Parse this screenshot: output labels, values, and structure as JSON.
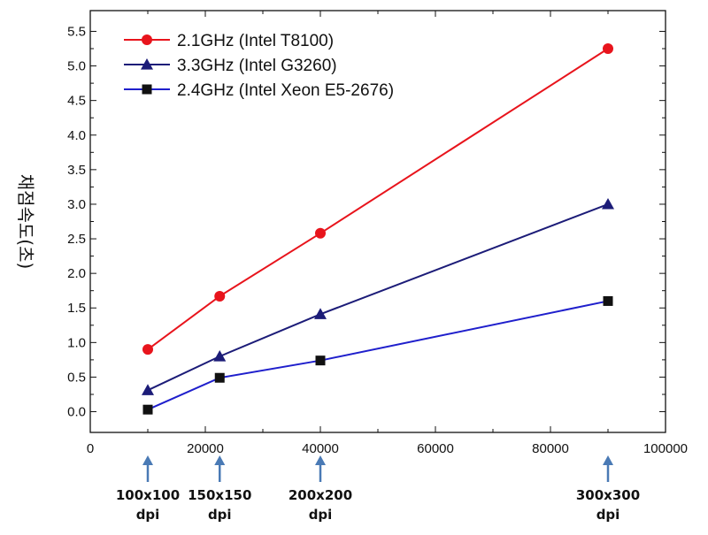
{
  "chart_data": {
    "type": "line",
    "title": "",
    "xlabel": "",
    "ylabel": "채점속도(초)",
    "xlim": [
      0,
      100000
    ],
    "ylim": [
      -0.3,
      5.8
    ],
    "x_ticks": [
      0,
      20000,
      40000,
      60000,
      80000,
      100000
    ],
    "x_tick_labels": [
      "0",
      "20000",
      "40000",
      "60000",
      "80000",
      "100000"
    ],
    "y_ticks": [
      0.0,
      0.5,
      1.0,
      1.5,
      2.0,
      2.5,
      3.0,
      3.5,
      4.0,
      4.5,
      5.0,
      5.5
    ],
    "y_tick_labels": [
      "0.0",
      "0.5",
      "1.0",
      "1.5",
      "2.0",
      "2.5",
      "3.0",
      "3.5",
      "4.0",
      "4.5",
      "5.0",
      "5.5"
    ],
    "grid": false,
    "legend_position": "top-left",
    "x": [
      10000,
      22500,
      40000,
      90000
    ],
    "series": [
      {
        "name": "2.1GHz (Intel T8100)",
        "color": "#e8141c",
        "marker": "circle",
        "values": [
          0.9,
          1.67,
          2.58,
          5.25
        ]
      },
      {
        "name": "3.3GHz (Intel  G3260)",
        "color": "#1c1c78",
        "marker": "triangle",
        "values": [
          0.31,
          0.8,
          1.41,
          3.0
        ]
      },
      {
        "name": "2.4GHz (Intel Xeon E5-2676)",
        "color": "#1f1fcc",
        "marker": "square",
        "values": [
          0.03,
          0.49,
          0.74,
          1.6
        ]
      }
    ],
    "annotations": [
      {
        "x": 10000,
        "line1": "100x100",
        "line2": "dpi"
      },
      {
        "x": 22500,
        "line1": "150x150",
        "line2": "dpi"
      },
      {
        "x": 40000,
        "line1": "200x200",
        "line2": "dpi"
      },
      {
        "x": 90000,
        "line1": "300x300",
        "line2": "dpi"
      }
    ],
    "annotation_arrow_color": "#4a7ab5"
  }
}
